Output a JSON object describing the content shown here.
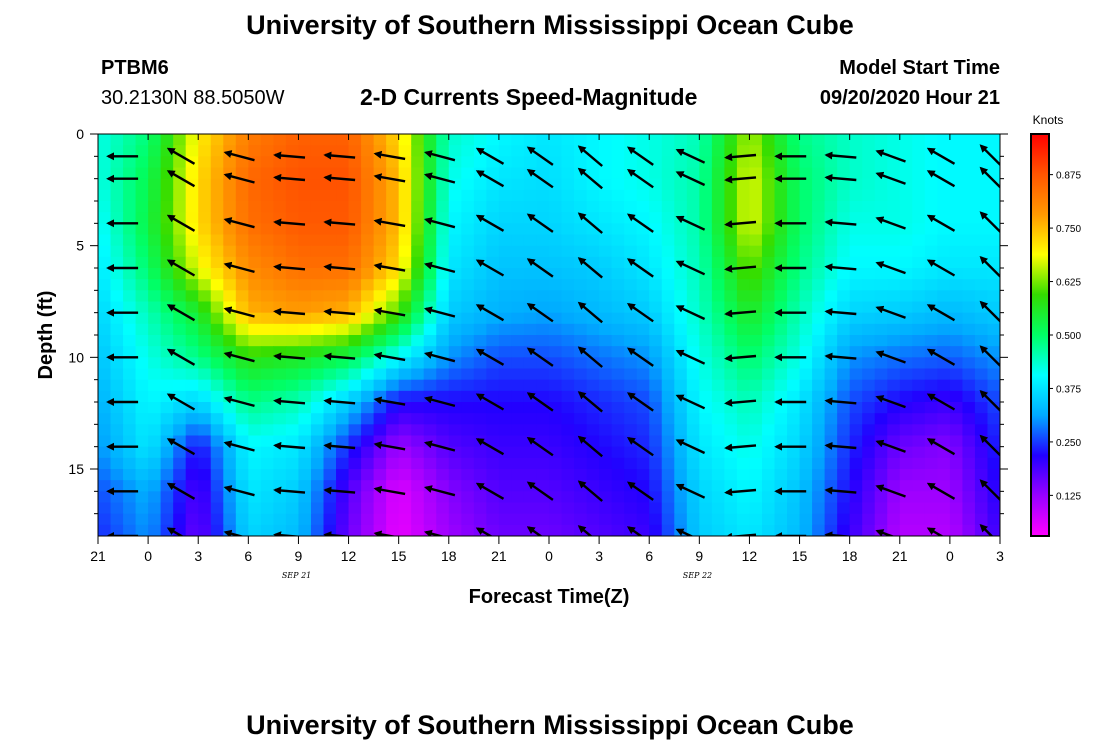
{
  "page": {
    "title_top": "University of Southern Mississippi Ocean Cube",
    "title_bottom": "University of Southern Mississippi Ocean Cube",
    "station_id": "PTBM6",
    "station_coords": "30.2130N 88.5050W",
    "plot_title": "2-D Currents Speed-Magnitude",
    "model_start_label": "Model Start Time",
    "model_start_value": "09/20/2020 Hour 21"
  },
  "colors": {
    "scale": [
      "#ff00ff",
      "#9900ff",
      "#2200ff",
      "#00aaff",
      "#00ffff",
      "#00ff66",
      "#33dd00",
      "#ffff00",
      "#ff9900",
      "#ff5500",
      "#ff0000"
    ],
    "arrow": "#000000"
  },
  "chart_data": {
    "type": "heatmap",
    "title": "2-D Currents Speed-Magnitude",
    "xlabel": "Forecast Time(Z)",
    "ylabel": "Depth (ft)",
    "x_tick_labels": [
      "21",
      "0",
      "3",
      "6",
      "9",
      "12",
      "15",
      "18",
      "21",
      "0",
      "3",
      "6",
      "9",
      "12",
      "15",
      "18",
      "21",
      "0",
      "3"
    ],
    "x_range_hours": [
      0,
      54
    ],
    "date_labels": [
      {
        "text": "SEP 21",
        "hour": 15
      },
      {
        "text": "SEP 22",
        "hour": 39
      }
    ],
    "y_ticks": [
      0,
      5,
      10,
      15
    ],
    "y_range": [
      0,
      18
    ],
    "y_inverted": true,
    "colorbar": {
      "title": "Knots",
      "ticks": [
        0.125,
        0.25,
        0.375,
        0.5,
        0.625,
        0.75,
        0.875
      ],
      "tick_labels": [
        "0.125",
        "0.250",
        "0.375",
        "0.500",
        "0.625",
        "0.750",
        "0.875"
      ],
      "range": [
        0.03,
        0.97
      ]
    },
    "speed_columns_hours": [
      0,
      3,
      6,
      9,
      12,
      15,
      18,
      21,
      24,
      27,
      30,
      33,
      36,
      39,
      42,
      45,
      48,
      51,
      54
    ],
    "speed_rows_depth_ft": [
      0,
      2,
      4,
      6,
      8,
      10,
      12,
      14,
      16,
      18
    ],
    "speed_knots": [
      [
        0.42,
        0.49,
        0.7,
        0.82,
        0.86,
        0.86,
        0.72,
        0.44,
        0.4,
        0.38,
        0.4,
        0.42,
        0.45,
        0.65,
        0.48,
        0.44,
        0.42,
        0.4,
        0.4
      ],
      [
        0.42,
        0.52,
        0.72,
        0.85,
        0.88,
        0.88,
        0.75,
        0.42,
        0.38,
        0.37,
        0.4,
        0.42,
        0.46,
        0.68,
        0.5,
        0.44,
        0.42,
        0.4,
        0.4
      ],
      [
        0.4,
        0.53,
        0.72,
        0.84,
        0.87,
        0.87,
        0.75,
        0.4,
        0.36,
        0.36,
        0.38,
        0.4,
        0.46,
        0.68,
        0.5,
        0.42,
        0.42,
        0.4,
        0.4
      ],
      [
        0.38,
        0.5,
        0.68,
        0.8,
        0.84,
        0.84,
        0.72,
        0.38,
        0.34,
        0.34,
        0.35,
        0.38,
        0.45,
        0.62,
        0.48,
        0.4,
        0.4,
        0.38,
        0.38
      ],
      [
        0.36,
        0.45,
        0.55,
        0.76,
        0.78,
        0.76,
        0.6,
        0.35,
        0.32,
        0.31,
        0.33,
        0.35,
        0.44,
        0.56,
        0.45,
        0.36,
        0.35,
        0.33,
        0.35
      ],
      [
        0.34,
        0.42,
        0.48,
        0.58,
        0.56,
        0.52,
        0.4,
        0.3,
        0.26,
        0.26,
        0.28,
        0.3,
        0.42,
        0.5,
        0.42,
        0.3,
        0.28,
        0.27,
        0.3
      ],
      [
        0.32,
        0.4,
        0.36,
        0.48,
        0.45,
        0.35,
        0.22,
        0.22,
        0.22,
        0.22,
        0.24,
        0.26,
        0.4,
        0.45,
        0.38,
        0.26,
        0.22,
        0.2,
        0.26
      ],
      [
        0.3,
        0.38,
        0.22,
        0.4,
        0.38,
        0.24,
        0.12,
        0.18,
        0.2,
        0.2,
        0.22,
        0.24,
        0.38,
        0.42,
        0.36,
        0.24,
        0.16,
        0.14,
        0.24
      ],
      [
        0.26,
        0.32,
        0.18,
        0.38,
        0.35,
        0.18,
        0.06,
        0.14,
        0.18,
        0.18,
        0.2,
        0.22,
        0.36,
        0.4,
        0.34,
        0.22,
        0.12,
        0.12,
        0.22
      ],
      [
        0.24,
        0.3,
        0.16,
        0.36,
        0.33,
        0.16,
        0.05,
        0.12,
        0.16,
        0.16,
        0.18,
        0.2,
        0.35,
        0.38,
        0.33,
        0.2,
        0.1,
        0.1,
        0.2
      ]
    ],
    "arrow_rows_depth_ft": [
      1,
      2,
      4,
      6,
      8,
      10,
      12,
      14,
      16,
      18
    ],
    "arrows": [
      {
        "hour": 1.5,
        "dir_deg": 90
      },
      {
        "hour": 5,
        "dir_deg": 60
      },
      {
        "hour": 8.5,
        "dir_deg": 75
      },
      {
        "hour": 11.5,
        "dir_deg": 85
      },
      {
        "hour": 14.5,
        "dir_deg": 85
      },
      {
        "hour": 17.5,
        "dir_deg": 80
      },
      {
        "hour": 20.5,
        "dir_deg": 75
      },
      {
        "hour": 23.5,
        "dir_deg": 60
      },
      {
        "hour": 26.5,
        "dir_deg": 55
      },
      {
        "hour": 29.5,
        "dir_deg": 50
      },
      {
        "hour": 32.5,
        "dir_deg": 55
      },
      {
        "hour": 35.5,
        "dir_deg": 65
      },
      {
        "hour": 38.5,
        "dir_deg": 95
      },
      {
        "hour": 41.5,
        "dir_deg": 90
      },
      {
        "hour": 44.5,
        "dir_deg": 85
      },
      {
        "hour": 47.5,
        "dir_deg": 70
      },
      {
        "hour": 50.5,
        "dir_deg": 60
      },
      {
        "hour": 53.5,
        "dir_deg": 45
      }
    ]
  }
}
